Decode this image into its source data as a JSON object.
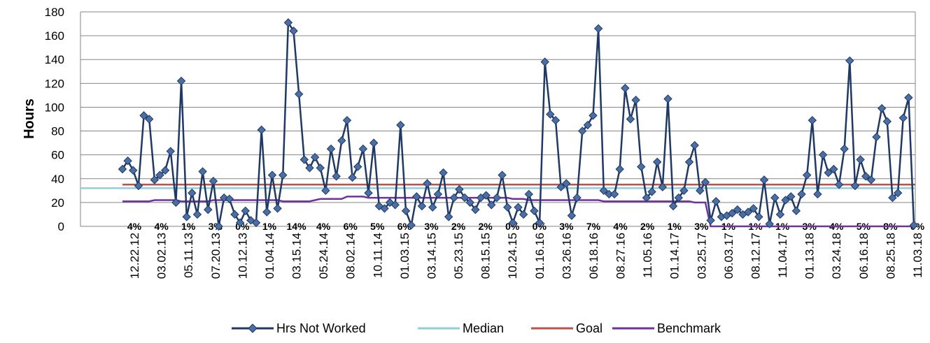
{
  "chart_data": {
    "type": "line",
    "ylabel": "Hours",
    "ylim": [
      0,
      180
    ],
    "yticks": [
      0,
      20,
      40,
      60,
      80,
      100,
      120,
      140,
      160,
      180
    ],
    "xtick_labels": [
      "12.22.12",
      "03.02.13",
      "05.11.13",
      "07.20.13",
      "10.12.13",
      "01.04.14",
      "03.15.14",
      "05.24.14",
      "08.02.14",
      "10.11.14",
      "01.03.15",
      "03.14.15",
      "05.23.15",
      "08.15.15",
      "10.24.15",
      "01.16.16",
      "03.26.16",
      "06.18.16",
      "08.27.16",
      "11.05.16",
      "01.14.17",
      "03.25.17",
      "06.03.17",
      "08.12.17",
      "11.04.17",
      "01.13.18",
      "03.24.18",
      "06.16.18",
      "08.25.18",
      "11.03.18"
    ],
    "percent_labels": [
      "4%",
      "4%",
      "1%",
      "3%",
      "0%",
      "1%",
      "14%",
      "4%",
      "6%",
      "5%",
      "6%",
      "3%",
      "2%",
      "2%",
      "0%",
      "0%",
      "3%",
      "7%",
      "4%",
      "2%",
      "1%",
      "3%",
      "1%",
      "1%",
      "1%",
      "3%",
      "4%",
      "5%",
      "8%",
      "0%"
    ],
    "grid": true,
    "legend_position": "bottom",
    "series": [
      {
        "name": "Hrs Not Worked",
        "color": "#1F3864",
        "marker": "diamond",
        "values": [
          48,
          55,
          47,
          34,
          93,
          90,
          39,
          43,
          47,
          63,
          20,
          122,
          8,
          28,
          10,
          46,
          14,
          38,
          0,
          24,
          23,
          10,
          3,
          13,
          5,
          3,
          81,
          12,
          43,
          15,
          43,
          171,
          164,
          111,
          56,
          49,
          58,
          49,
          30,
          65,
          42,
          72,
          89,
          41,
          50,
          65,
          28,
          70,
          17,
          15,
          20,
          18,
          85,
          13,
          1,
          25,
          17,
          36,
          16,
          27,
          45,
          8,
          24,
          31,
          24,
          20,
          14,
          24,
          26,
          18,
          24,
          43,
          16,
          3,
          16,
          10,
          27,
          13,
          3,
          138,
          94,
          89,
          33,
          36,
          9,
          24,
          80,
          85,
          93,
          166,
          30,
          27,
          27,
          48,
          116,
          90,
          106,
          50,
          24,
          29,
          54,
          33,
          107,
          17,
          24,
          30,
          54,
          68,
          30,
          37,
          5,
          21,
          8,
          9,
          11,
          14,
          10,
          12,
          15,
          8,
          39,
          2,
          24,
          10,
          22,
          25,
          13,
          27,
          43,
          89,
          27,
          60,
          45,
          48,
          35,
          65,
          139,
          34,
          56,
          42,
          39,
          75,
          99,
          88,
          24,
          28,
          91,
          108,
          1
        ]
      },
      {
        "name": "Median",
        "color": "#92CDDC",
        "y": 32
      },
      {
        "name": "Goal",
        "color": "#C0504D",
        "y": 35
      },
      {
        "name": "Benchmark",
        "color": "#7030A0",
        "values": [
          21,
          21,
          21,
          21,
          21,
          21,
          22,
          22,
          22,
          22,
          22,
          21,
          21,
          21,
          21,
          21,
          21,
          22,
          22,
          22,
          22,
          22,
          22,
          22,
          22,
          22,
          22,
          22,
          22,
          22,
          21,
          21,
          21,
          21,
          21,
          21,
          22,
          23,
          23,
          23,
          23,
          23,
          25,
          25,
          25,
          25,
          24,
          24,
          24,
          24,
          24,
          24,
          24,
          24,
          24,
          24,
          24,
          24,
          24,
          24,
          24,
          24,
          24,
          24,
          24,
          24,
          24,
          24,
          24,
          24,
          24,
          24,
          24,
          23,
          23,
          23,
          22,
          22,
          22,
          22,
          22,
          22,
          22,
          22,
          22,
          22,
          22,
          22,
          22,
          22,
          21,
          21,
          21,
          21,
          21,
          21,
          21,
          21,
          21,
          21,
          21,
          21,
          21,
          21,
          21,
          21,
          21,
          20,
          20,
          20,
          0,
          0,
          0,
          0,
          0,
          0,
          0,
          0,
          0,
          0,
          0,
          0,
          0,
          0,
          0,
          0,
          0,
          0,
          0,
          0,
          0,
          0,
          0,
          0,
          0,
          0,
          0,
          0,
          0,
          0,
          0,
          0,
          0,
          0,
          0,
          0,
          0,
          0,
          0
        ]
      }
    ]
  }
}
